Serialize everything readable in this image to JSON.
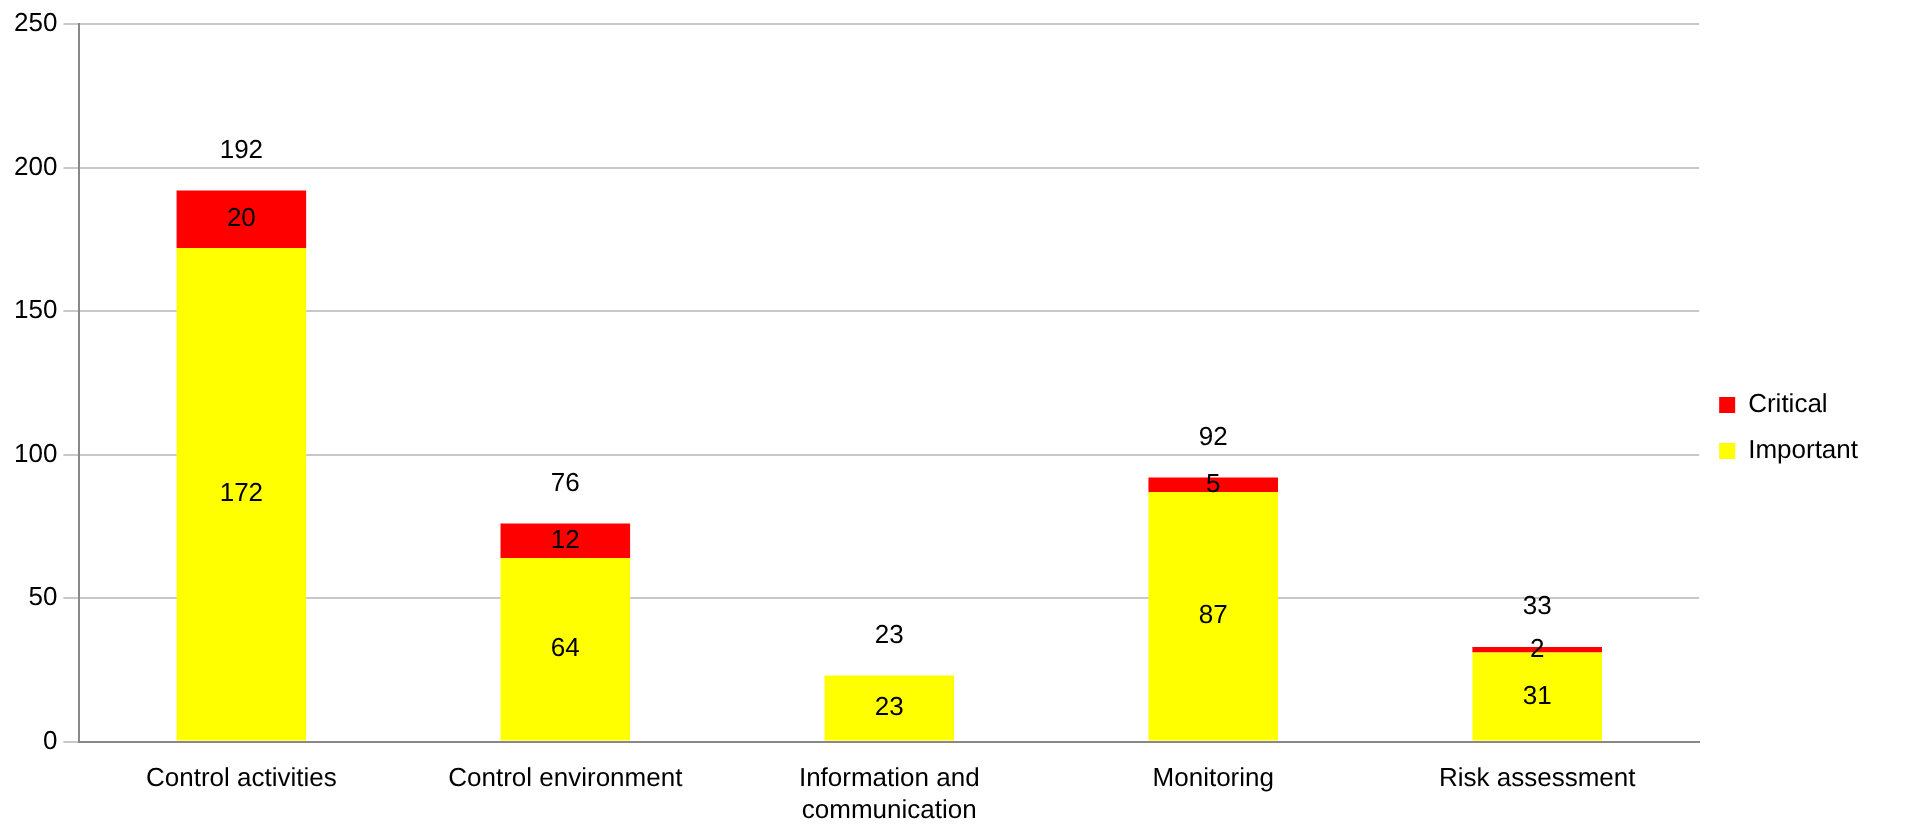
{
  "chart_data": {
    "type": "bar",
    "stacked": true,
    "categories": [
      "Control activities",
      "Control environment",
      "Information and communication",
      "Monitoring",
      "Risk assessment"
    ],
    "series": [
      {
        "name": "Important",
        "color": "#ffff00",
        "values": [
          172,
          64,
          23,
          87,
          31
        ]
      },
      {
        "name": "Critical",
        "color": "#ff0000",
        "values": [
          20,
          12,
          null,
          5,
          2
        ]
      }
    ],
    "totals": [
      "192",
      "76",
      "23",
      "92",
      "33"
    ],
    "data_labels": true,
    "ylim": [
      0,
      250
    ],
    "yticks": [
      0,
      50,
      100,
      150,
      200,
      250
    ],
    "grid": "y",
    "legend": "right"
  }
}
